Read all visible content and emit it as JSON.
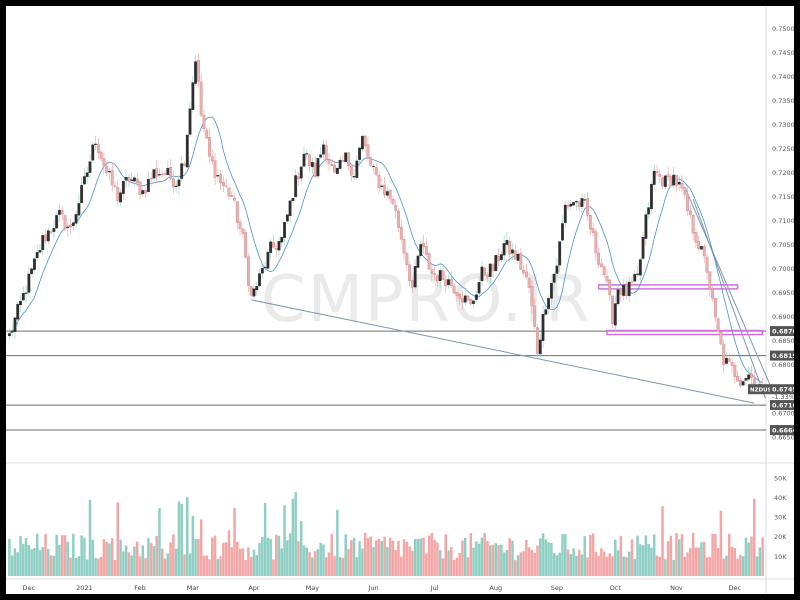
{
  "chart_data": {
    "type": "candlestick",
    "symbol": "NZDUSD",
    "watermark": "CMPRO.IR",
    "price_axis": {
      "range": [
        0.661,
        0.753
      ],
      "ticks": [
        "0.75000",
        "0.74500",
        "0.74000",
        "0.73500",
        "0.73000",
        "0.72500",
        "0.72000",
        "0.71500",
        "0.71000",
        "0.70500",
        "0.70000",
        "0.69500",
        "0.69000",
        "0.68500",
        "0.68000",
        "0.67500",
        "0.67000",
        "0.66500"
      ]
    },
    "volume_axis": {
      "range": [
        0,
        55000
      ],
      "ticks": [
        "50K",
        "40K",
        "30K",
        "20K",
        "10K"
      ]
    },
    "x_axis": {
      "ticks": [
        {
          "label": "Dec",
          "bar": 7
        },
        {
          "label": "2021",
          "bar": 27
        },
        {
          "label": "Feb",
          "bar": 47
        },
        {
          "label": "Mar",
          "bar": 66
        },
        {
          "label": "Apr",
          "bar": 88
        },
        {
          "label": "May",
          "bar": 109
        },
        {
          "label": "Jun",
          "bar": 131
        },
        {
          "label": "Jul",
          "bar": 153
        },
        {
          "label": "Aug",
          "bar": 175
        },
        {
          "label": "Sep",
          "bar": 197
        },
        {
          "label": "Oct",
          "bar": 218
        },
        {
          "label": "Nov",
          "bar": 240
        },
        {
          "label": "Dec",
          "bar": 261
        }
      ]
    },
    "price_labels": [
      {
        "value": 0.687,
        "text": "0.68700"
      },
      {
        "value": 0.6819,
        "text": "0.68190"
      },
      {
        "value": 0.6749,
        "text": "0.67490",
        "sub": "-1.33%",
        "symbol": true
      },
      {
        "value": 0.6716,
        "text": "0.67160"
      },
      {
        "value": 0.6664,
        "text": "0.66640"
      }
    ],
    "horizontal_lines": [
      0.687,
      0.6819,
      0.6716,
      0.6664
    ],
    "zones": [
      {
        "from_bar": 212,
        "to_bar": 262,
        "price": 0.6962,
        "color": "#d070e0"
      },
      {
        "from_bar": 215,
        "to_bar": 271,
        "price": 0.6867,
        "color": "#d070e0"
      }
    ],
    "trendlines": [
      {
        "from": [
          87,
          0.6935
        ],
        "to": [
          268,
          0.672
        ]
      },
      {
        "from": [
          243,
          0.717
        ],
        "to": [
          275,
          0.674
        ]
      },
      {
        "from": [
          246,
          0.7145
        ],
        "to": [
          272,
          0.673
        ]
      }
    ],
    "close_anchors": [
      [
        0,
        0.686
      ],
      [
        6,
        0.696
      ],
      [
        12,
        0.706
      ],
      [
        18,
        0.711
      ],
      [
        22,
        0.708
      ],
      [
        27,
        0.718
      ],
      [
        31,
        0.727
      ],
      [
        35,
        0.72
      ],
      [
        39,
        0.715
      ],
      [
        43,
        0.719
      ],
      [
        48,
        0.716
      ],
      [
        52,
        0.72
      ],
      [
        56,
        0.72
      ],
      [
        60,
        0.718
      ],
      [
        63,
        0.723
      ],
      [
        65,
        0.734
      ],
      [
        67,
        0.744
      ],
      [
        69,
        0.732
      ],
      [
        72,
        0.723
      ],
      [
        76,
        0.718
      ],
      [
        80,
        0.715
      ],
      [
        84,
        0.706
      ],
      [
        87,
        0.694
      ],
      [
        90,
        0.698
      ],
      [
        94,
        0.704
      ],
      [
        98,
        0.706
      ],
      [
        102,
        0.716
      ],
      [
        106,
        0.724
      ],
      [
        110,
        0.72
      ],
      [
        113,
        0.726
      ],
      [
        117,
        0.719
      ],
      [
        121,
        0.723
      ],
      [
        124,
        0.72
      ],
      [
        127,
        0.727
      ],
      [
        130,
        0.721
      ],
      [
        134,
        0.717
      ],
      [
        138,
        0.714
      ],
      [
        142,
        0.704
      ],
      [
        145,
        0.696
      ],
      [
        148,
        0.705
      ],
      [
        152,
        0.699
      ],
      [
        157,
        0.698
      ],
      [
        162,
        0.695
      ],
      [
        166,
        0.692
      ],
      [
        170,
        0.699
      ],
      [
        174,
        0.7
      ],
      [
        178,
        0.705
      ],
      [
        183,
        0.702
      ],
      [
        187,
        0.696
      ],
      [
        190,
        0.683
      ],
      [
        193,
        0.693
      ],
      [
        197,
        0.701
      ],
      [
        200,
        0.713
      ],
      [
        203,
        0.714
      ],
      [
        207,
        0.713
      ],
      [
        211,
        0.704
      ],
      [
        214,
        0.699
      ],
      [
        217,
        0.69
      ],
      [
        219,
        0.696
      ],
      [
        222,
        0.695
      ],
      [
        226,
        0.698
      ],
      [
        229,
        0.71
      ],
      [
        232,
        0.72
      ],
      [
        236,
        0.718
      ],
      [
        239,
        0.719
      ],
      [
        242,
        0.716
      ],
      [
        245,
        0.71
      ],
      [
        248,
        0.705
      ],
      [
        251,
        0.7
      ],
      [
        254,
        0.689
      ],
      [
        257,
        0.681
      ],
      [
        260,
        0.679
      ],
      [
        263,
        0.677
      ],
      [
        266,
        0.678
      ],
      [
        269,
        0.676
      ],
      [
        271,
        0.675
      ]
    ]
  }
}
